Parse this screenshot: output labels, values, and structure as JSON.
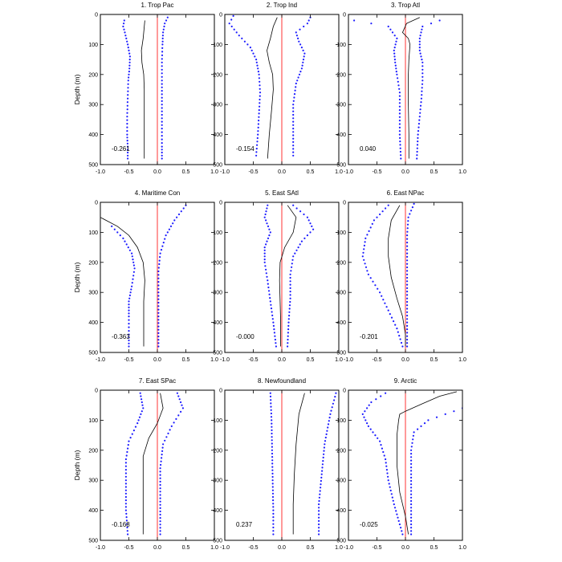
{
  "chart_data": [
    {
      "type": "line",
      "title": "1. Trop Pac",
      "correlation": "-0.261",
      "xlim": [
        -1.0,
        1.0
      ],
      "ylim": [
        500,
        0
      ],
      "ylabel": "Depth (m)",
      "xticks": [
        "-1.0",
        "-0.5",
        "0.0",
        "0.5",
        "1.0"
      ],
      "yticks": [
        "0",
        "100",
        "200",
        "300",
        "400",
        "500"
      ],
      "series": [
        {
          "style": "solid-black",
          "x": [
            -0.22,
            -0.23,
            -0.25,
            -0.28,
            -0.27,
            -0.24,
            -0.23,
            -0.23,
            -0.23,
            -0.23,
            -0.23
          ],
          "y": [
            20,
            40,
            80,
            120,
            160,
            200,
            250,
            300,
            350,
            400,
            480
          ]
        },
        {
          "style": "dotted-blue",
          "x": [
            -0.58,
            -0.6,
            -0.57,
            -0.52,
            -0.48,
            -0.49,
            -0.51,
            -0.52,
            -0.53,
            -0.53,
            -0.52,
            -0.52
          ],
          "y": [
            20,
            40,
            60,
            100,
            140,
            180,
            220,
            280,
            340,
            400,
            440,
            480
          ]
        },
        {
          "style": "dotted-blue",
          "x": [
            0.18,
            0.13,
            0.1,
            0.09,
            0.08,
            0.08,
            0.08,
            0.08,
            0.08,
            0.08
          ],
          "y": [
            10,
            30,
            60,
            100,
            160,
            220,
            300,
            380,
            440,
            480
          ]
        }
      ]
    },
    {
      "type": "line",
      "title": "2. Trop Ind",
      "correlation": "-0.154",
      "xlim": [
        -1.0,
        1.0
      ],
      "ylim": [
        500,
        0
      ],
      "ylabel": "",
      "xticks": [
        "-1.0",
        "-0.5",
        "0.0",
        "0.5",
        "1.0"
      ],
      "yticks": [
        "0",
        "100",
        "200",
        "300",
        "400",
        "500"
      ],
      "series": [
        {
          "style": "solid-black",
          "x": [
            -0.08,
            -0.15,
            -0.2,
            -0.26,
            -0.22,
            -0.16,
            -0.15,
            -0.18,
            -0.22,
            -0.25
          ],
          "y": [
            10,
            40,
            80,
            120,
            160,
            200,
            250,
            320,
            400,
            480
          ]
        },
        {
          "style": "dotted-blue",
          "x": [
            -0.85,
            -0.92,
            -0.75,
            -0.55,
            -0.45,
            -0.4,
            -0.38,
            -0.4,
            -0.42,
            -0.45
          ],
          "y": [
            5,
            30,
            70,
            110,
            150,
            200,
            260,
            330,
            400,
            470
          ]
        },
        {
          "style": "dotted-blue",
          "x": [
            0.5,
            0.45,
            0.25,
            0.3,
            0.4,
            0.35,
            0.25,
            0.2,
            0.2,
            0.2
          ],
          "y": [
            10,
            30,
            60,
            90,
            130,
            180,
            230,
            300,
            380,
            470
          ]
        }
      ]
    },
    {
      "type": "line",
      "title": "3. Trop Atl",
      "correlation": "0.040",
      "xlim": [
        -1.0,
        1.0
      ],
      "ylim": [
        500,
        0
      ],
      "ylabel": "",
      "xticks": [
        "-1.0",
        "-0.5",
        "0.0",
        "0.5",
        "1.0"
      ],
      "yticks": [
        "0",
        "100",
        "200",
        "300",
        "400",
        "500"
      ],
      "series": [
        {
          "style": "solid-black",
          "x": [
            0.25,
            0.02,
            -0.05,
            0.05,
            0.08,
            0.06,
            0.05,
            0.05,
            0.06,
            0.06
          ],
          "y": [
            10,
            30,
            60,
            80,
            100,
            150,
            200,
            300,
            400,
            480
          ]
        },
        {
          "style": "dotted-blue",
          "x": [
            -0.9,
            -0.3,
            -0.15,
            -0.2,
            -0.18,
            -0.15,
            -0.1,
            -0.1,
            -0.1,
            -0.08
          ],
          "y": [
            20,
            40,
            80,
            120,
            160,
            200,
            260,
            330,
            400,
            480
          ]
        },
        {
          "style": "dotted-blue",
          "x": [
            0.6,
            0.3,
            0.25,
            0.25,
            0.3,
            0.3,
            0.28,
            0.25,
            0.22,
            0.2
          ],
          "y": [
            20,
            40,
            80,
            120,
            160,
            220,
            280,
            340,
            400,
            480
          ]
        }
      ]
    },
    {
      "type": "line",
      "title": "4. Maritime Con",
      "correlation": "-0.363",
      "xlim": [
        -1.0,
        1.0
      ],
      "ylim": [
        500,
        0
      ],
      "ylabel": "Depth (m)",
      "xticks": [
        "-1.0",
        "-0.5",
        "0.0",
        "0.5",
        "1.0"
      ],
      "yticks": [
        "0",
        "100",
        "200",
        "300",
        "400",
        "500"
      ],
      "series": [
        {
          "style": "solid-black",
          "x": [
            -1.0,
            -0.7,
            -0.5,
            -0.35,
            -0.25,
            -0.22,
            -0.24,
            -0.24,
            -0.24
          ],
          "y": [
            50,
            80,
            110,
            150,
            200,
            260,
            330,
            400,
            480
          ]
        },
        {
          "style": "dotted-blue",
          "x": [
            -0.8,
            -0.6,
            -0.45,
            -0.4,
            -0.45,
            -0.5,
            -0.5,
            -0.5,
            -0.5
          ],
          "y": [
            80,
            120,
            170,
            220,
            280,
            330,
            380,
            440,
            480
          ]
        },
        {
          "style": "dotted-blue",
          "x": [
            0.5,
            0.3,
            0.15,
            0.05,
            0.02,
            0.02,
            0.02,
            0.02
          ],
          "y": [
            10,
            60,
            110,
            170,
            230,
            300,
            380,
            480
          ]
        }
      ]
    },
    {
      "type": "line",
      "title": "5. East SAtl",
      "correlation": "-0.000",
      "xlim": [
        -1.0,
        1.0
      ],
      "ylim": [
        500,
        0
      ],
      "ylabel": "",
      "xticks": [
        "-1.0",
        "-0.5",
        "0.0",
        "0.5",
        "1.0"
      ],
      "yticks": [
        "0",
        "100",
        "200",
        "300",
        "400",
        "500"
      ],
      "series": [
        {
          "style": "solid-black",
          "x": [
            0.1,
            0.25,
            0.2,
            0.05,
            -0.03,
            -0.04,
            -0.03,
            -0.02,
            -0.02
          ],
          "y": [
            10,
            50,
            100,
            150,
            200,
            260,
            330,
            400,
            480
          ]
        },
        {
          "style": "dotted-blue",
          "x": [
            -0.25,
            -0.3,
            -0.2,
            -0.3,
            -0.3,
            -0.25,
            -0.2,
            -0.15,
            -0.1
          ],
          "y": [
            10,
            50,
            100,
            150,
            200,
            260,
            330,
            400,
            480
          ]
        },
        {
          "style": "dotted-blue",
          "x": [
            0.2,
            0.45,
            0.55,
            0.35,
            0.2,
            0.15,
            0.15,
            0.12,
            0.1
          ],
          "y": [
            10,
            50,
            90,
            130,
            180,
            240,
            320,
            400,
            480
          ]
        }
      ]
    },
    {
      "type": "line",
      "title": "6. East NPac",
      "correlation": "-0.201",
      "xlim": [
        -1.0,
        1.0
      ],
      "ylim": [
        500,
        0
      ],
      "ylabel": "",
      "xticks": [
        "-1.0",
        "-0.5",
        "0.0",
        "0.5",
        "1.0"
      ],
      "yticks": [
        "0",
        "100",
        "200",
        "300",
        "400",
        "500"
      ],
      "series": [
        {
          "style": "solid-black",
          "x": [
            -0.1,
            -0.25,
            -0.3,
            -0.3,
            -0.25,
            -0.15,
            -0.05,
            0.0,
            0.0
          ],
          "y": [
            10,
            60,
            120,
            180,
            250,
            320,
            380,
            440,
            480
          ]
        },
        {
          "style": "dotted-blue",
          "x": [
            -0.3,
            -0.55,
            -0.7,
            -0.75,
            -0.65,
            -0.45,
            -0.3,
            -0.15,
            -0.05
          ],
          "y": [
            10,
            60,
            120,
            180,
            240,
            300,
            360,
            420,
            480
          ]
        },
        {
          "style": "dotted-blue",
          "x": [
            0.15,
            0.05,
            0.03,
            0.03,
            0.03,
            0.03,
            0.03,
            0.03
          ],
          "y": [
            5,
            50,
            110,
            170,
            240,
            320,
            400,
            480
          ]
        }
      ]
    },
    {
      "type": "line",
      "title": "7. East SPac",
      "correlation": "-0.168",
      "xlim": [
        -1.0,
        1.0
      ],
      "ylim": [
        500,
        0
      ],
      "ylabel": "Depth (m)",
      "xticks": [
        "-1.0",
        "-0.5",
        "0.0",
        "0.5",
        "1.0"
      ],
      "yticks": [
        "0",
        "100",
        "200",
        "300",
        "400",
        "500"
      ],
      "series": [
        {
          "style": "solid-black",
          "x": [
            0.05,
            0.1,
            0.0,
            -0.15,
            -0.25,
            -0.25,
            -0.25,
            -0.25
          ],
          "y": [
            10,
            60,
            110,
            160,
            220,
            300,
            400,
            480
          ]
        },
        {
          "style": "dotted-blue",
          "x": [
            -0.3,
            -0.25,
            -0.35,
            -0.5,
            -0.55,
            -0.55,
            -0.55,
            -0.52
          ],
          "y": [
            10,
            60,
            110,
            170,
            230,
            300,
            400,
            480
          ]
        },
        {
          "style": "dotted-blue",
          "x": [
            0.35,
            0.45,
            0.25,
            0.1,
            0.05,
            0.05,
            0.05
          ],
          "y": [
            10,
            60,
            120,
            180,
            260,
            360,
            480
          ]
        }
      ]
    },
    {
      "type": "line",
      "title": "8. Newfoundland",
      "correlation": "0.237",
      "xlim": [
        -1.0,
        1.0
      ],
      "ylim": [
        500,
        0
      ],
      "ylabel": "",
      "xticks": [
        "-1.0",
        "-0.5",
        "0.0",
        "0.5",
        "1.0"
      ],
      "yticks": [
        "0",
        "100",
        "200",
        "300",
        "400",
        "500"
      ],
      "series": [
        {
          "style": "solid-black",
          "x": [
            0.4,
            0.3,
            0.25,
            0.22,
            0.2,
            0.2
          ],
          "y": [
            10,
            80,
            180,
            280,
            380,
            480
          ]
        },
        {
          "style": "dotted-blue",
          "x": [
            -0.2,
            -0.18,
            -0.17,
            -0.16,
            -0.15,
            -0.15
          ],
          "y": [
            10,
            100,
            200,
            300,
            400,
            480
          ]
        },
        {
          "style": "dotted-blue",
          "x": [
            0.95,
            0.85,
            0.75,
            0.7,
            0.65,
            0.65
          ],
          "y": [
            10,
            80,
            180,
            280,
            380,
            480
          ]
        }
      ]
    },
    {
      "type": "line",
      "title": "9. Arctic",
      "correlation": "-0.025",
      "xlim": [
        -1.0,
        1.0
      ],
      "ylim": [
        500,
        0
      ],
      "ylabel": "",
      "xticks": [
        "-1.0",
        "-0.5",
        "0.0",
        "0.5",
        "1.0"
      ],
      "yticks": [
        "0",
        "100",
        "200",
        "300",
        "400",
        "500"
      ],
      "series": [
        {
          "style": "solid-black",
          "x": [
            0.9,
            0.6,
            0.3,
            0.0,
            -0.1,
            -0.12,
            -0.15,
            -0.15,
            -0.1,
            0.0,
            0.05
          ],
          "y": [
            5,
            20,
            45,
            70,
            80,
            100,
            150,
            250,
            340,
            420,
            480
          ]
        },
        {
          "style": "dotted-blue",
          "x": [
            -0.35,
            -0.6,
            -0.75,
            -0.65,
            -0.45,
            -0.35,
            -0.3,
            -0.2,
            -0.05
          ],
          "y": [
            10,
            40,
            80,
            120,
            170,
            230,
            300,
            380,
            480
          ]
        },
        {
          "style": "dotted-blue",
          "x": [
            1.0,
            0.7,
            0.4,
            0.15,
            0.1,
            0.1,
            0.1,
            0.1
          ],
          "y": [
            60,
            80,
            100,
            140,
            200,
            280,
            380,
            480
          ]
        }
      ]
    }
  ]
}
